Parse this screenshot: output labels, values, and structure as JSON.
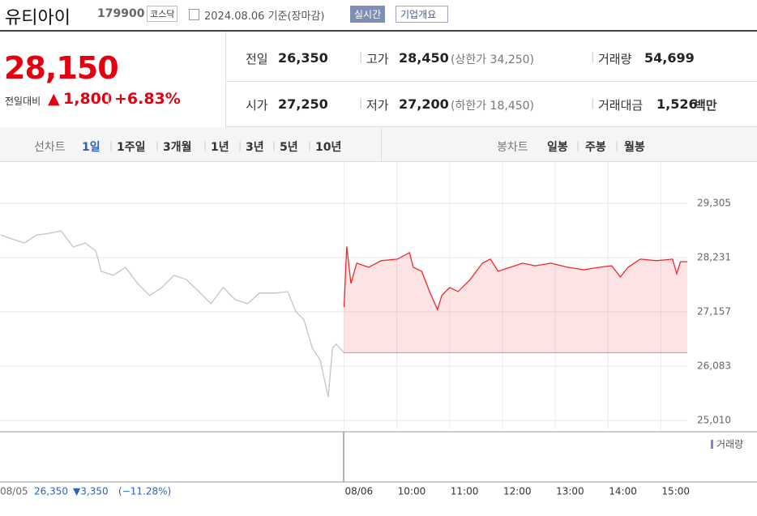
{
  "header": {
    "name": "유티아이",
    "code": "179900",
    "market": "코스닥",
    "date": "2024.08.06 기준(장마감)",
    "realtime": "실시간",
    "overview": "기업개요"
  },
  "quote": {
    "price": "28,150",
    "change_label": "전일대비",
    "change": "1,800",
    "change_rate": "+6.83%"
  },
  "stats": [
    {
      "label": "전일",
      "value": "26,350"
    },
    {
      "label": "고가",
      "value": "28,450",
      "note": "(상한가 34,250)"
    },
    {
      "label": "거래량",
      "value": "54,699"
    },
    {
      "label": "시가",
      "value": "27,250"
    },
    {
      "label": "저가",
      "value": "27,200",
      "note": "(하한가 18,450)"
    },
    {
      "label": "거래대금",
      "value": "1,526",
      "unit": "백만"
    }
  ],
  "tabs": {
    "line_label": "선차트",
    "line_items": [
      "1일",
      "1주일",
      "3개월",
      "1년",
      "3년",
      "5년",
      "10년"
    ],
    "candle_label": "봉차트",
    "candle_items": [
      "일봉",
      "주봉",
      "월봉"
    ]
  },
  "prev_day": {
    "date": "08/05",
    "close": "26,350",
    "change": "▼3,350",
    "rate": "(−11.28%)"
  },
  "volume_legend": "거래량",
  "chart_data": {
    "type": "line",
    "series": [
      {
        "color": "#c4c4c4",
        "fill": false,
        "x": [
          0,
          0.21,
          0.45,
          0.68,
          0.91,
          1.14,
          1.37,
          1.6,
          1.8,
          1.9,
          2.13,
          2.36,
          2.59,
          2.82,
          3.05,
          3.28,
          3.51,
          3.75,
          3.98,
          4.21,
          4.44,
          4.67,
          4.9,
          5.2,
          5.43,
          5.59,
          5.74,
          5.9,
          6.05,
          6.2,
          6.28,
          6.35,
          6.5
        ],
        "values": [
          28680,
          28600,
          28520,
          28680,
          28710,
          28760,
          28440,
          28520,
          28360,
          27960,
          27880,
          28040,
          27720,
          27480,
          27640,
          27880,
          27800,
          27560,
          27320,
          27640,
          27400,
          27320,
          27530,
          27530,
          27560,
          27160,
          27000,
          26440,
          26200,
          25470,
          26440,
          26520,
          26350
        ]
      },
      {
        "color": "#f0282d",
        "fill": true,
        "x": [
          6.5,
          6.55,
          6.63,
          6.74,
          6.97,
          7.2,
          7.51,
          7.74,
          7.81,
          7.97,
          8.12,
          8.27,
          8.35,
          8.5,
          8.66,
          8.89,
          9.12,
          9.27,
          9.42,
          9.65,
          9.88,
          10.12,
          10.42,
          10.73,
          11.04,
          11.34,
          11.57,
          11.73,
          11.88,
          12.11,
          12.42,
          12.72,
          12.8,
          12.87,
          13
        ],
        "values": [
          27250,
          28450,
          27720,
          28120,
          28040,
          28170,
          28200,
          28330,
          28040,
          27960,
          27560,
          27200,
          27480,
          27640,
          27560,
          27800,
          28120,
          28200,
          27960,
          28040,
          28120,
          28070,
          28120,
          28040,
          27990,
          28040,
          28070,
          27850,
          28040,
          28200,
          28170,
          28200,
          27910,
          28150,
          28150
        ]
      }
    ],
    "baseline": 26350,
    "xlim": [
      0,
      13
    ],
    "xticks": [
      {
        "value": 6.5,
        "label": "08/06"
      },
      {
        "value": 7.5,
        "label": "10:00"
      },
      {
        "value": 8.5,
        "label": "11:00"
      },
      {
        "value": 9.5,
        "label": "12:00"
      },
      {
        "value": 10.5,
        "label": "13:00"
      },
      {
        "value": 11.5,
        "label": "14:00"
      },
      {
        "value": 12.5,
        "label": "15:00"
      }
    ],
    "ylim": [
      24834,
      30122
    ],
    "yticks": [
      {
        "value": 25010,
        "label": "25,010"
      },
      {
        "value": 26083,
        "label": "26,083"
      },
      {
        "value": 27157,
        "label": "27,157"
      },
      {
        "value": 28231,
        "label": "28,231"
      },
      {
        "value": 29305,
        "label": "29,305"
      }
    ],
    "grid": true
  }
}
